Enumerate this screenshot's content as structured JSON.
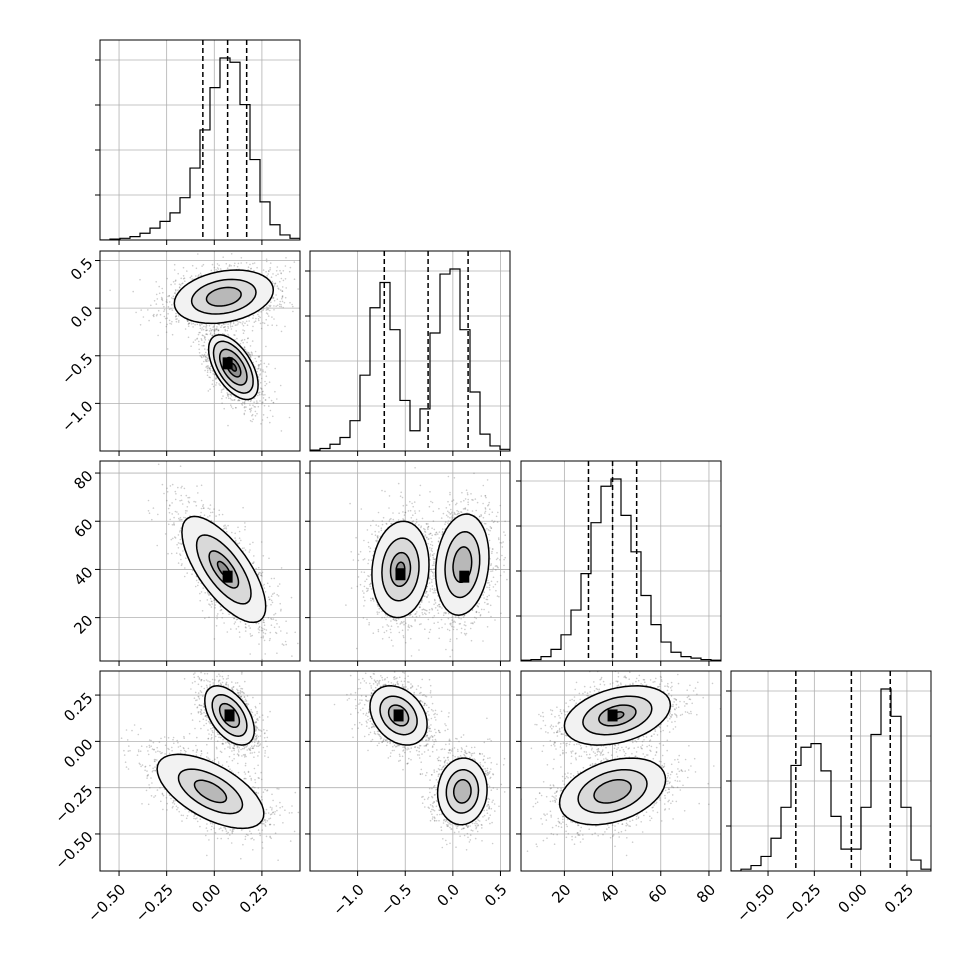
{
  "chart_data": {
    "type": "corner",
    "grid": true,
    "hist_bins": 20,
    "colors": {
      "line": "#000000",
      "grid": "#b0b0b0",
      "scatter": "#6e6e6e",
      "hist_fill": "#555555"
    },
    "params": [
      {
        "index": 0,
        "range": [
          -0.6,
          0.45
        ],
        "ticks": [
          -0.5,
          -0.25,
          0.0,
          0.25
        ],
        "tick_labels": [
          "−0.50",
          "−0.25",
          "0.00",
          "0.25"
        ],
        "quantiles": [
          -0.06,
          0.07,
          0.17
        ],
        "hist": {
          "bins": [
            -0.6,
            -0.5475,
            -0.495,
            -0.4425,
            -0.39,
            -0.3375,
            -0.285,
            -0.2325,
            -0.18,
            -0.1275,
            -0.075,
            -0.0225,
            0.03,
            0.0825,
            0.135,
            0.1875,
            0.24,
            0.2925,
            0.345,
            0.3975,
            0.45
          ],
          "counts": [
            0,
            1,
            2,
            4,
            8,
            14,
            22,
            32,
            50,
            85,
            130,
            180,
            215,
            210,
            160,
            95,
            45,
            18,
            6,
            2
          ]
        }
      },
      {
        "index": 1,
        "range": [
          -1.5,
          0.6
        ],
        "ticks": [
          -1.0,
          -0.5,
          0.0,
          0.5
        ],
        "tick_labels": [
          "−1.0",
          "−0.5",
          "0.0",
          "0.5"
        ],
        "quantiles": [
          -0.72,
          -0.26,
          0.16
        ],
        "hist": {
          "bins": [
            -1.5,
            -1.395,
            -1.29,
            -1.185,
            -1.08,
            -0.975,
            -0.87,
            -0.765,
            -0.66,
            -0.555,
            -0.45,
            -0.345,
            -0.24,
            -0.135,
            -0.03,
            0.075,
            0.18,
            0.285,
            0.39,
            0.495,
            0.6
          ],
          "counts": [
            0.5,
            1.5,
            4,
            8,
            18,
            45,
            85,
            100,
            72,
            30,
            12,
            25,
            70,
            105,
            108,
            72,
            35,
            10,
            3,
            1
          ]
        }
      },
      {
        "index": 2,
        "range": [
          2,
          85
        ],
        "ticks": [
          20,
          40,
          60,
          80
        ],
        "tick_labels": [
          "20",
          "40",
          "60",
          "80"
        ],
        "quantiles": [
          30,
          40,
          50
        ],
        "hist": {
          "bins": [
            2,
            6.15,
            10.3,
            14.45,
            18.6,
            22.75,
            26.9,
            31.05,
            35.2,
            39.35,
            43.5,
            47.65,
            51.8,
            55.95,
            60.1,
            64.25,
            68.4,
            72.55,
            76.7,
            80.85,
            85
          ],
          "counts": [
            0.5,
            1,
            3,
            8,
            18,
            35,
            60,
            95,
            120,
            125,
            100,
            75,
            45,
            25,
            13,
            6,
            3,
            2,
            1,
            0.5
          ]
        }
      },
      {
        "index": 3,
        "range": [
          -0.7,
          0.38
        ],
        "ticks": [
          -0.5,
          -0.25,
          0.0,
          0.25
        ],
        "tick_labels": [
          "−0.50",
          "−0.25",
          "0.00",
          "0.25"
        ],
        "quantiles": [
          -0.35,
          -0.05,
          0.16
        ],
        "hist": {
          "bins": [
            -0.7,
            -0.646,
            -0.592,
            -0.538,
            -0.484,
            -0.43,
            -0.376,
            -0.322,
            -0.268,
            -0.214,
            -0.16,
            -0.106,
            -0.052,
            0.002,
            0.056,
            0.11,
            0.164,
            0.218,
            0.272,
            0.326,
            0.38
          ],
          "counts": [
            0,
            1,
            3,
            8,
            18,
            35,
            58,
            68,
            70,
            55,
            30,
            12,
            12,
            35,
            75,
            100,
            85,
            35,
            6,
            1
          ]
        }
      }
    ],
    "pairs": [
      {
        "row": 1,
        "col": 0,
        "modes": [
          {
            "mean": [
              0.05,
              0.12
            ],
            "std": [
              0.13,
              0.14
            ],
            "rho": 0.25,
            "contour_scales": [
              1.0,
              0.65,
              0.35
            ]
          },
          {
            "mean": [
              0.1,
              -0.62
            ],
            "std": [
              0.065,
              0.17
            ],
            "rho": -0.55,
            "contour_scales": [
              1.0,
              0.8,
              0.55,
              0.3,
              0.12
            ],
            "peak": [
              0.07,
              -0.58
            ]
          }
        ]
      },
      {
        "row": 2,
        "col": 0,
        "modes": [
          {
            "mean": [
              0.05,
              40
            ],
            "std": [
              0.11,
              11
            ],
            "rho": -0.7,
            "contour_scales": [
              1.0,
              0.65,
              0.35,
              0.15
            ],
            "peak": [
              0.07,
              37
            ]
          }
        ]
      },
      {
        "row": 2,
        "col": 1,
        "modes": [
          {
            "mean": [
              -0.55,
              40
            ],
            "std": [
              0.15,
              10
            ],
            "rho": 0.1,
            "contour_scales": [
              1.0,
              0.65,
              0.35,
              0.15
            ],
            "peak": [
              -0.55,
              38
            ]
          },
          {
            "mean": [
              0.1,
              42
            ],
            "std": [
              0.14,
              10.5
            ],
            "rho": 0.15,
            "contour_scales": [
              1.0,
              0.65,
              0.35
            ],
            "peak": [
              0.12,
              37
            ]
          }
        ]
      },
      {
        "row": 3,
        "col": 0,
        "modes": [
          {
            "mean": [
              0.08,
              0.14
            ],
            "std": [
              0.065,
              0.08
            ],
            "rho": -0.5,
            "contour_scales": [
              1.0,
              0.7,
              0.4,
              0.15
            ],
            "peak": [
              0.08,
              0.14
            ]
          },
          {
            "mean": [
              -0.02,
              -0.27
            ],
            "std": [
              0.14,
              0.1
            ],
            "rho": -0.6,
            "contour_scales": [
              1.0,
              0.6,
              0.3
            ]
          }
        ]
      },
      {
        "row": 3,
        "col": 1,
        "modes": [
          {
            "mean": [
              -0.57,
              0.14
            ],
            "std": [
              0.15,
              0.08
            ],
            "rho": -0.3,
            "contour_scales": [
              1.0,
              0.65,
              0.35,
              0.12
            ],
            "peak": [
              -0.57,
              0.14
            ]
          },
          {
            "mean": [
              0.1,
              -0.27
            ],
            "std": [
              0.13,
              0.09
            ],
            "rho": 0.05,
            "contour_scales": [
              1.0,
              0.65,
              0.35
            ]
          }
        ]
      },
      {
        "row": 3,
        "col": 2,
        "modes": [
          {
            "mean": [
              42,
              0.14
            ],
            "std": [
              11,
              0.08
            ],
            "rho": 0.35,
            "contour_scales": [
              1.0,
              0.65,
              0.35,
              0.12
            ],
            "peak": [
              40,
              0.14
            ]
          },
          {
            "mean": [
              40,
              -0.27
            ],
            "std": [
              11,
              0.09
            ],
            "rho": 0.35,
            "contour_scales": [
              1.0,
              0.65,
              0.35
            ]
          }
        ]
      }
    ]
  }
}
